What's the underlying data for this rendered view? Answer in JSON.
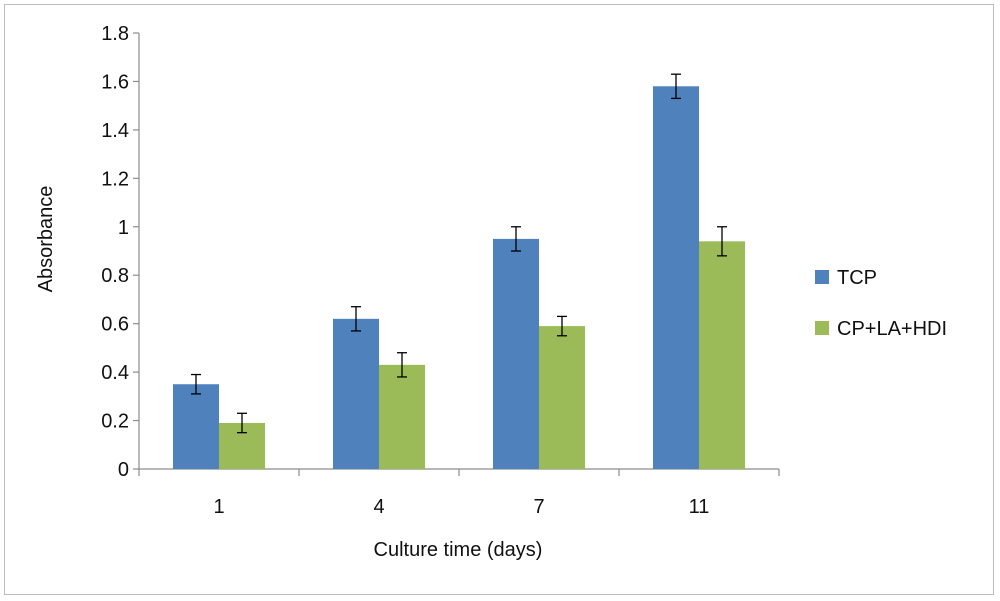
{
  "chart_data": {
    "type": "bar",
    "categories": [
      "1",
      "4",
      "7",
      "11"
    ],
    "series": [
      {
        "name": "TCP",
        "color": "#4f81bd",
        "values": [
          0.35,
          0.62,
          0.95,
          1.58
        ],
        "errors": [
          0.04,
          0.05,
          0.05,
          0.05
        ]
      },
      {
        "name": "CP+LA+HDI",
        "color": "#9bbb59",
        "values": [
          0.19,
          0.43,
          0.59,
          0.94
        ],
        "errors": [
          0.04,
          0.05,
          0.04,
          0.06
        ]
      }
    ],
    "xlabel": "Culture time (days)",
    "ylabel": "Absorbance",
    "ylim": [
      0,
      1.8
    ],
    "yticks": [
      "0",
      "0.2",
      "0.4",
      "0.6",
      "0.8",
      "1",
      "1.2",
      "1.4",
      "1.6",
      "1.8"
    ],
    "grid": false,
    "legend_position": "right"
  }
}
